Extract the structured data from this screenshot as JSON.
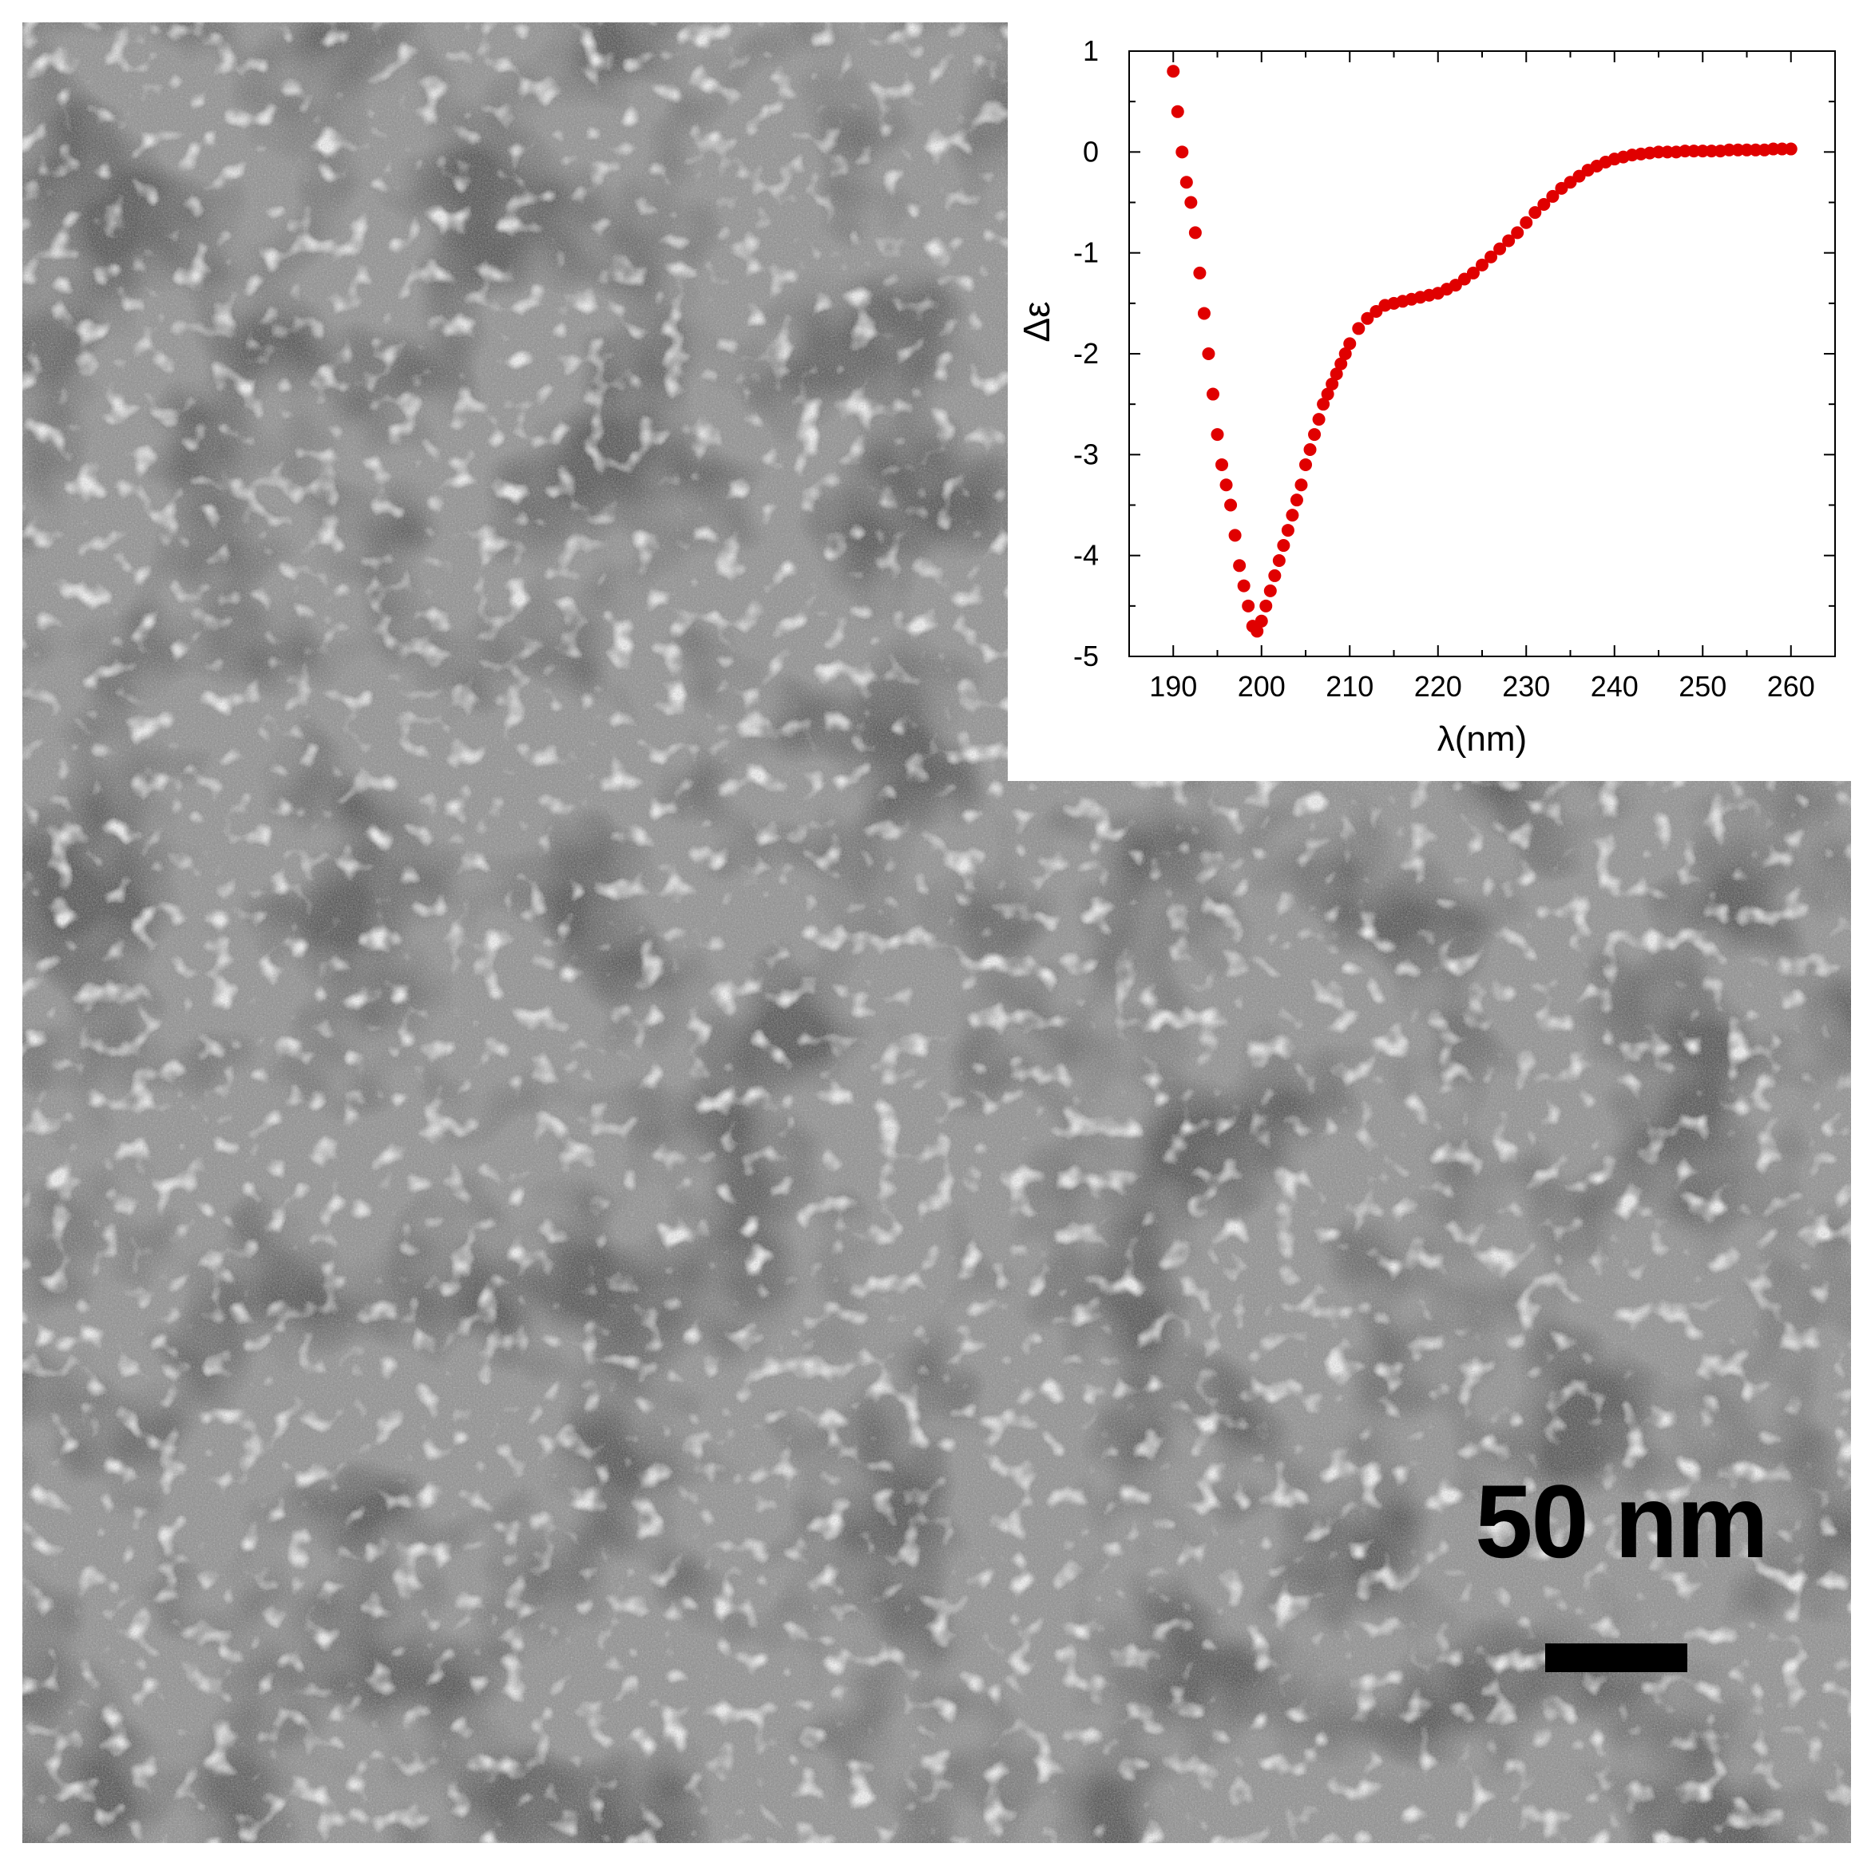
{
  "micrograph": {
    "scale_bar_label": "50 nm",
    "colors": {
      "background": "#8a8a8a",
      "stain_dark": "#1a1a1a",
      "particle_light": "#dcdcdc"
    }
  },
  "chart_data": {
    "type": "scatter",
    "title": "",
    "xlabel": "λ(nm)",
    "ylabel": "Δε",
    "xlim": [
      185,
      265
    ],
    "ylim": [
      -5,
      1
    ],
    "x_ticks": [
      190,
      200,
      210,
      220,
      230,
      240,
      250,
      260
    ],
    "y_ticks": [
      1,
      0,
      -1,
      -2,
      -3,
      -4,
      -5
    ],
    "grid": false,
    "legend": "none",
    "marker_color": "#e00000",
    "series": [
      {
        "x": [
          190,
          190.5,
          191,
          191.5,
          192,
          192.5,
          193,
          193.5,
          194,
          194.5,
          195,
          195.5,
          196,
          196.5,
          197,
          197.5,
          198,
          198.5,
          199,
          199.5,
          200,
          200.5,
          201,
          201.5,
          202,
          202.5,
          203,
          203.5,
          204,
          204.5,
          205,
          205.5,
          206,
          206.5,
          207,
          207.5,
          208,
          208.5,
          209,
          209.5,
          210,
          211,
          212,
          213,
          214,
          215,
          216,
          217,
          218,
          219,
          220,
          221,
          222,
          223,
          224,
          225,
          226,
          227,
          228,
          229,
          230,
          231,
          232,
          233,
          234,
          235,
          236,
          237,
          238,
          239,
          240,
          241,
          242,
          243,
          244,
          245,
          246,
          247,
          248,
          249,
          250,
          251,
          252,
          253,
          254,
          255,
          256,
          257,
          258,
          259,
          260
        ],
        "y": [
          0.8,
          0.4,
          0.0,
          -0.3,
          -0.5,
          -0.8,
          -1.2,
          -1.6,
          -2.0,
          -2.4,
          -2.8,
          -3.1,
          -3.3,
          -3.5,
          -3.8,
          -4.1,
          -4.3,
          -4.5,
          -4.7,
          -4.75,
          -4.65,
          -4.5,
          -4.35,
          -4.2,
          -4.05,
          -3.9,
          -3.75,
          -3.6,
          -3.45,
          -3.3,
          -3.1,
          -2.95,
          -2.8,
          -2.65,
          -2.5,
          -2.4,
          -2.3,
          -2.2,
          -2.1,
          -2.0,
          -1.9,
          -1.75,
          -1.65,
          -1.58,
          -1.52,
          -1.5,
          -1.48,
          -1.46,
          -1.44,
          -1.42,
          -1.4,
          -1.36,
          -1.32,
          -1.26,
          -1.2,
          -1.12,
          -1.04,
          -0.96,
          -0.88,
          -0.8,
          -0.7,
          -0.6,
          -0.52,
          -0.44,
          -0.36,
          -0.3,
          -0.24,
          -0.18,
          -0.14,
          -0.1,
          -0.07,
          -0.05,
          -0.03,
          -0.02,
          -0.01,
          0.0,
          0.0,
          0.0,
          0.01,
          0.01,
          0.01,
          0.01,
          0.01,
          0.02,
          0.02,
          0.02,
          0.02,
          0.02,
          0.03,
          0.03,
          0.03
        ]
      }
    ]
  }
}
